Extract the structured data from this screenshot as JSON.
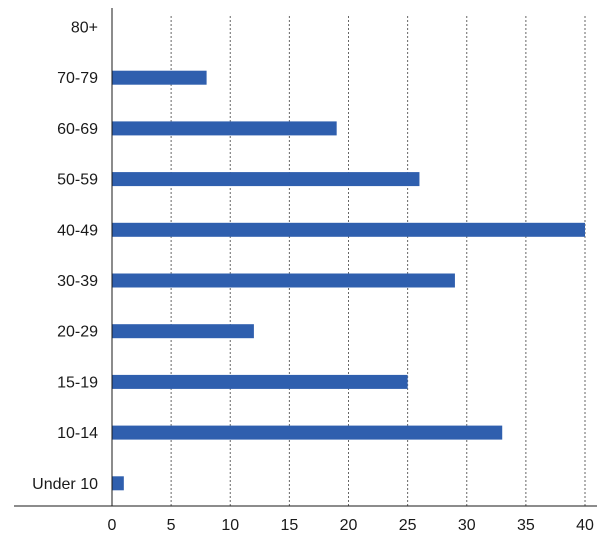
{
  "chart_data": {
    "type": "bar",
    "orientation": "horizontal",
    "title": "",
    "xlabel": "",
    "ylabel": "",
    "categories": [
      "80+",
      "70-79",
      "60-69",
      "50-59",
      "40-49",
      "30-39",
      "20-29",
      "15-19",
      "10-14",
      "Under 10"
    ],
    "values": [
      0,
      8,
      19,
      26,
      40,
      29,
      12,
      25,
      33,
      1
    ],
    "xlim": [
      0,
      40
    ],
    "xticks": [
      0,
      5,
      10,
      15,
      20,
      25,
      30,
      35,
      40
    ],
    "grid": "vertical",
    "legend": "none",
    "bar_color": "#2f5fae"
  }
}
